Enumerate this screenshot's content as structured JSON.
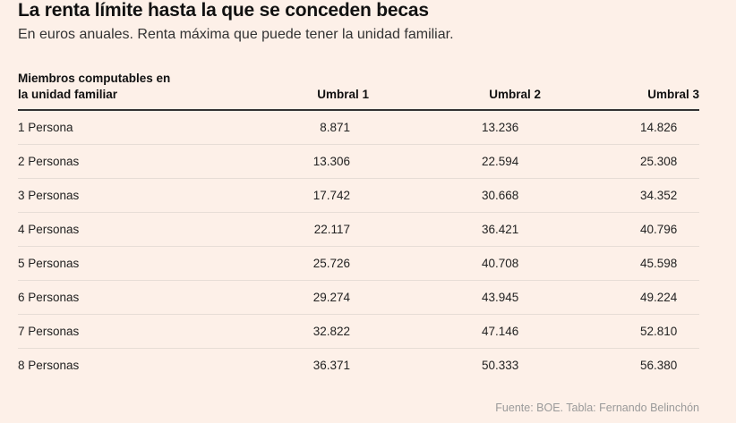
{
  "title": "La renta límite hasta la que se conceden becas",
  "subtitle": "En euros anuales. Renta máxima que puede tener la unidad familiar.",
  "table": {
    "headers": {
      "members_line1": "Miembros computables en",
      "members_line2": "la unidad familiar",
      "umbral1": "Umbral 1",
      "umbral2": "Umbral 2",
      "umbral3": "Umbral 3"
    },
    "rows": [
      {
        "label": "1 Persona",
        "u1": "8.871",
        "u2": "13.236",
        "u3": "14.826"
      },
      {
        "label": "2 Personas",
        "u1": "13.306",
        "u2": "22.594",
        "u3": "25.308"
      },
      {
        "label": "3 Personas",
        "u1": "17.742",
        "u2": "30.668",
        "u3": "34.352"
      },
      {
        "label": "4 Personas",
        "u1": "22.117",
        "u2": "36.421",
        "u3": "40.796"
      },
      {
        "label": "5 Personas",
        "u1": "25.726",
        "u2": "40.708",
        "u3": "45.598"
      },
      {
        "label": "6 Personas",
        "u1": "29.274",
        "u2": "43.945",
        "u3": "49.224"
      },
      {
        "label": "7 Personas",
        "u1": "32.822",
        "u2": "47.146",
        "u3": "52.810"
      },
      {
        "label": "8 Personas",
        "u1": "36.371",
        "u2": "50.333",
        "u3": "56.380"
      }
    ]
  },
  "source": "Fuente: BOE. Tabla: Fernando Belinchón",
  "colors": {
    "background": "#fdf0e8",
    "text": "#222222",
    "muted": "#9a9a9a"
  }
}
